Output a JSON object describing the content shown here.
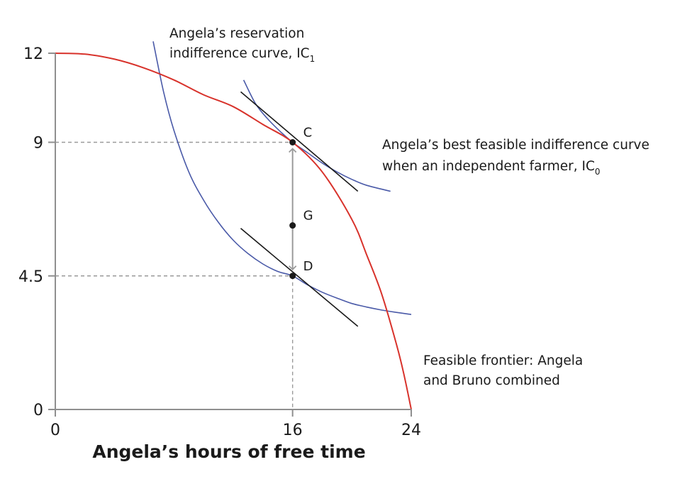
{
  "chart_data": {
    "type": "line",
    "xlabel": "Angela’s hours of free time",
    "ylabel": "",
    "xlim": [
      0,
      24
    ],
    "ylim": [
      0,
      12
    ],
    "x_ticks": [
      "0",
      "16",
      "24"
    ],
    "y_ticks": [
      "0",
      "4.5",
      "9",
      "12"
    ],
    "points": [
      {
        "label": "C",
        "x": 16,
        "y": 9
      },
      {
        "label": "G",
        "x": 16,
        "y": 6.2
      },
      {
        "label": "D",
        "x": 16,
        "y": 4.5
      }
    ],
    "annotations": {
      "ic1": {
        "line1": "Angela’s reservation",
        "line2": "indifference curve, IC",
        "subscript": "1"
      },
      "ic0": {
        "line1": "Angela’s best feasible indifference curve",
        "line2": "when an independent farmer, IC",
        "subscript": "0"
      },
      "frontier": {
        "line1": "Feasible frontier: Angela",
        "line2": "and Bruno combined"
      }
    },
    "series": [
      {
        "id": "frontier",
        "color": "#d8322b",
        "x": [
          0,
          2,
          4,
          6,
          8,
          10,
          12,
          14,
          16,
          18,
          20,
          21,
          22,
          23,
          23.5,
          24
        ],
        "y": [
          12,
          11.97,
          11.8,
          11.5,
          11.1,
          10.6,
          10.2,
          9.6,
          9.0,
          8.0,
          6.4,
          5.2,
          3.9,
          2.2,
          1.2,
          0
        ]
      },
      {
        "id": "ic1",
        "color": "#4a5aa8",
        "x": [
          6.6,
          7.3,
          8,
          9,
          10,
          11,
          12,
          13,
          14,
          15,
          16,
          17,
          18,
          19,
          20,
          21,
          22,
          23,
          24
        ],
        "y": [
          12.4,
          10.7,
          9.4,
          8.0,
          7.05,
          6.3,
          5.7,
          5.25,
          4.9,
          4.65,
          4.5,
          4.2,
          3.95,
          3.75,
          3.57,
          3.45,
          3.35,
          3.27,
          3.2
        ]
      },
      {
        "id": "ic0",
        "color": "#4a5aa8",
        "x": [
          12.7,
          13.5,
          14.3,
          15.2,
          16,
          17,
          18,
          19,
          20,
          21,
          22.6
        ],
        "y": [
          11.1,
          10.3,
          9.8,
          9.35,
          9.0,
          8.65,
          8.3,
          8.0,
          7.75,
          7.55,
          7.35
        ]
      },
      {
        "id": "tangent-c",
        "color": "#1a1a1a",
        "x": [
          12.5,
          20.4
        ],
        "y": [
          10.7,
          7.35
        ]
      },
      {
        "id": "tangent-d",
        "color": "#1a1a1a",
        "x": [
          12.5,
          20.4
        ],
        "y": [
          6.1,
          2.8
        ]
      }
    ],
    "grid": false,
    "legend": "none"
  }
}
